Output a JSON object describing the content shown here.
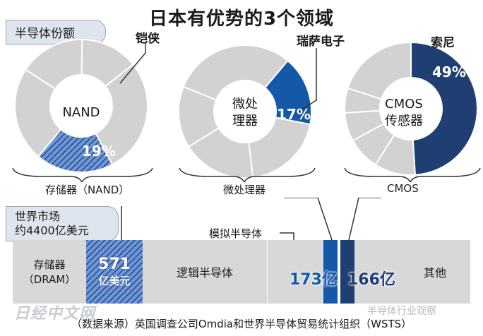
{
  "title": "日本有优势的3个领域",
  "share_tab": "半导体份额",
  "market_tab_line1": "世界市场",
  "market_tab_line2": "约4400亿美元",
  "colors": {
    "gray": "#d2d2d2",
    "blue_dark": "#1f3f73",
    "blue_mid": "#1558a8",
    "hatch": "#4a78c2"
  },
  "chart_data": [
    {
      "type": "pie",
      "title": "",
      "center_label": "NAND",
      "category": "存储器（NAND）",
      "highlight": {
        "name": "铠侠",
        "value": 19,
        "label": "19%"
      },
      "other_slices": [
        23,
        16,
        14,
        28
      ]
    },
    {
      "type": "pie",
      "title": "",
      "center_label_line1": "微处",
      "center_label_line2": "理器",
      "category": "微处理器",
      "highlight": {
        "name": "瑞萨电子",
        "value": 17,
        "label": "17%"
      },
      "other_slices": [
        20,
        18,
        15,
        30
      ]
    },
    {
      "type": "pie",
      "title": "",
      "center_label_line1": "CMOS",
      "center_label_line2": "传感器",
      "category": "CMOS",
      "highlight": {
        "name": "索尼",
        "value": 49,
        "label": "49%"
      },
      "other_slices": [
        10,
        8,
        7,
        6,
        20
      ]
    },
    {
      "type": "bar",
      "title": "",
      "total": "约4400亿美元",
      "segments": [
        {
          "label": "存储器",
          "sublabel": "（DRAM）",
          "value": null
        },
        {
          "label": "571",
          "sublabel": "亿美元",
          "value": 571
        },
        {
          "label": "逻辑半导体",
          "sublabel": "",
          "value": null
        },
        {
          "label": "",
          "sublabel": "",
          "value": null
        },
        {
          "label": "173亿",
          "sublabel": "",
          "value": 173
        },
        {
          "label": "166亿",
          "sublabel": "",
          "value": 166
        },
        {
          "label": "其他",
          "sublabel": "",
          "value": null
        }
      ],
      "callout_analog": "模拟半导体",
      "callout_micro": "微处理器",
      "callout_cmos": "CMOS"
    }
  ],
  "source_note": "（数据来源）英国调查公司Omdia和世界半导体贸易统计组织（WSTS）",
  "watermark_left": "日经中文网",
  "watermark_right": "半导体行业观察"
}
